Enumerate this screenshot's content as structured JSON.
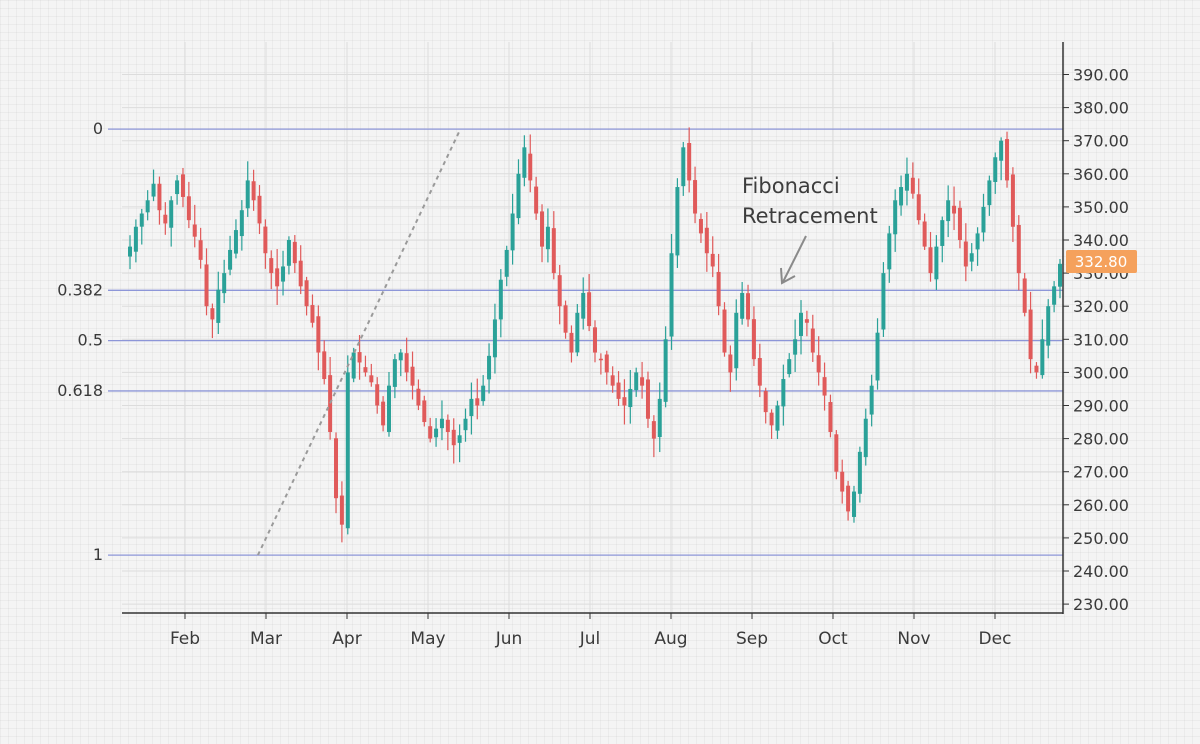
{
  "chart_data": {
    "type": "candlestick",
    "title": "",
    "xlabel": "",
    "ylabel": "",
    "ylim": [
      225,
      395
    ],
    "y_ticks": [
      "230.00",
      "240.00",
      "250.00",
      "260.00",
      "270.00",
      "280.00",
      "290.00",
      "300.00",
      "310.00",
      "320.00",
      "330.00",
      "340.00",
      "350.00",
      "360.00",
      "370.00",
      "380.00",
      "390.00"
    ],
    "x_ticks": [
      "Feb",
      "Mar",
      "Apr",
      "May",
      "Jun",
      "Jul",
      "Aug",
      "Sep",
      "Oct",
      "Nov",
      "Dec"
    ],
    "grid": true,
    "colors": {
      "up": "#2aa198",
      "down": "#e05a5a",
      "fib_line": "#8d96d8",
      "price_tag": "#f5a15c",
      "trend_line": "#9a9a9a"
    },
    "fib_levels": [
      {
        "label": "0",
        "price": 373.5
      },
      {
        "label": "0.382",
        "price": 324.8
      },
      {
        "label": "0.5",
        "price": 309.6
      },
      {
        "label": "0.618",
        "price": 294.4
      },
      {
        "label": "1",
        "price": 244.8
      }
    ],
    "trend_line": {
      "from": {
        "month": 2.9,
        "price": 244.8
      },
      "to": {
        "month": 5.4,
        "price": 373.5
      }
    },
    "last_price": "332.80",
    "annotation": {
      "lines": [
        "Fibonacci",
        "Retracement"
      ]
    },
    "series_close": [
      338,
      344,
      348,
      352,
      357,
      349,
      345,
      352,
      358,
      353,
      346,
      341,
      334,
      320,
      316,
      325,
      330,
      337,
      343,
      349,
      358,
      352,
      345,
      336,
      330,
      326,
      332,
      340,
      333,
      326,
      320,
      315,
      306,
      298,
      282,
      262,
      254,
      300,
      306,
      303,
      300,
      297,
      290,
      284,
      296,
      304,
      306,
      300,
      296,
      290,
      285,
      280,
      283,
      286,
      282,
      278,
      281,
      286,
      292,
      290,
      296,
      305,
      316,
      328,
      337,
      348,
      360,
      368,
      358,
      348,
      338,
      344,
      330,
      320,
      312,
      306,
      318,
      324,
      314,
      306,
      304,
      300,
      296,
      292,
      290,
      295,
      300,
      296,
      286,
      280,
      292,
      310,
      336,
      356,
      368,
      358,
      348,
      342,
      336,
      332,
      320,
      306,
      300,
      318,
      324,
      316,
      304,
      296,
      288,
      284,
      290,
      298,
      304,
      310,
      318,
      315,
      306,
      300,
      293,
      282,
      270,
      264,
      258,
      264,
      276,
      286,
      296,
      312,
      330,
      342,
      352,
      356,
      360,
      354,
      346,
      338,
      330,
      338,
      346,
      352,
      348,
      340,
      332,
      336,
      342,
      350,
      358,
      365,
      370,
      358,
      344,
      330,
      318,
      304,
      300,
      310,
      320,
      326,
      332.8
    ],
    "series_range": [
      225,
      395
    ]
  }
}
